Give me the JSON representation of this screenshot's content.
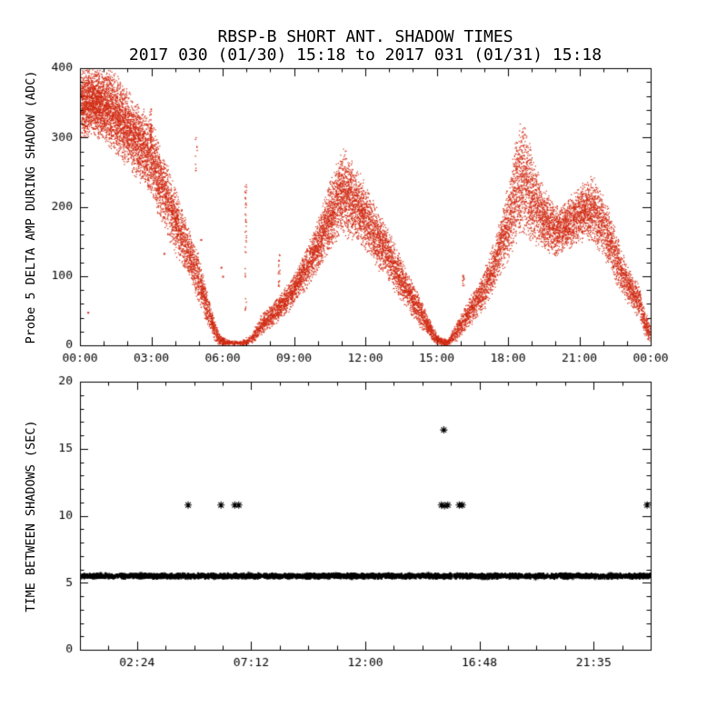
{
  "colors": {
    "background": "#ffffff",
    "axis": "#000000",
    "series_top": "#d12a12",
    "series_bottom": "#000000"
  },
  "chart_data": [
    {
      "type": "scatter",
      "title": "RBSP-B SHORT ANT. SHADOW TIMES",
      "subtitle": "2017 030 (01/30) 15:18 to 2017 031 (01/31) 15:18",
      "ylabel": "Probe 5 DELTA AMP DURING SHADOW (ADC)",
      "xlabel": "",
      "xlim": [
        0,
        24
      ],
      "ylim": [
        0,
        400
      ],
      "xticks": [
        0,
        3,
        6,
        9,
        12,
        15,
        18,
        21,
        24
      ],
      "xtick_labels": [
        "00:00",
        "03:00",
        "06:00",
        "09:00",
        "12:00",
        "15:00",
        "18:00",
        "21:00",
        "00:00"
      ],
      "xminor_step": 1,
      "yticks": [
        0,
        100,
        200,
        300,
        400
      ],
      "ytick_labels": [
        "0",
        "100",
        "200",
        "300",
        "400"
      ],
      "yminor_step": 20,
      "grid": false,
      "color": "#d12a12",
      "marker": "dot",
      "envelope": [
        [
          0.0,
          295,
          403,
          1100
        ],
        [
          0.7,
          300,
          403,
          1100
        ],
        [
          1.3,
          280,
          400,
          1000
        ],
        [
          2.0,
          255,
          375,
          900
        ],
        [
          2.6,
          230,
          345,
          850
        ],
        [
          3.0,
          210,
          330,
          800
        ],
        [
          3.5,
          170,
          280,
          700
        ],
        [
          4.0,
          130,
          230,
          650
        ],
        [
          4.5,
          98,
          180,
          600
        ],
        [
          5.0,
          60,
          130,
          550
        ],
        [
          5.35,
          28,
          78,
          500
        ],
        [
          5.65,
          5,
          38,
          420
        ],
        [
          5.9,
          0,
          14,
          300
        ],
        [
          6.3,
          0,
          8,
          160
        ],
        [
          6.8,
          0,
          8,
          140
        ],
        [
          7.2,
          2,
          18,
          220
        ],
        [
          7.6,
          14,
          45,
          350
        ],
        [
          8.0,
          24,
          60,
          400
        ],
        [
          8.5,
          38,
          80,
          450
        ],
        [
          9.0,
          58,
          105,
          500
        ],
        [
          9.5,
          80,
          145,
          550
        ],
        [
          10.0,
          105,
          185,
          620
        ],
        [
          10.4,
          128,
          230,
          700
        ],
        [
          10.8,
          148,
          272,
          780
        ],
        [
          11.1,
          155,
          292,
          800
        ],
        [
          11.4,
          148,
          270,
          760
        ],
        [
          11.8,
          138,
          248,
          700
        ],
        [
          12.2,
          122,
          222,
          650
        ],
        [
          12.6,
          104,
          192,
          600
        ],
        [
          13.0,
          88,
          168,
          560
        ],
        [
          13.5,
          62,
          128,
          520
        ],
        [
          14.0,
          38,
          92,
          480
        ],
        [
          14.4,
          20,
          62,
          440
        ],
        [
          14.8,
          5,
          32,
          380
        ],
        [
          15.1,
          0,
          14,
          280
        ],
        [
          15.45,
          0,
          9,
          220
        ],
        [
          15.75,
          4,
          30,
          330
        ],
        [
          16.1,
          16,
          52,
          380
        ],
        [
          16.5,
          32,
          78,
          420
        ],
        [
          17.0,
          52,
          112,
          470
        ],
        [
          17.4,
          78,
          155,
          520
        ],
        [
          17.8,
          108,
          205,
          580
        ],
        [
          18.1,
          128,
          255,
          650
        ],
        [
          18.4,
          148,
          318,
          720
        ],
        [
          18.65,
          152,
          330,
          720
        ],
        [
          18.9,
          148,
          295,
          680
        ],
        [
          19.2,
          140,
          262,
          640
        ],
        [
          19.6,
          132,
          225,
          600
        ],
        [
          20.0,
          128,
          202,
          580
        ],
        [
          20.4,
          133,
          210,
          580
        ],
        [
          20.8,
          142,
          228,
          600
        ],
        [
          21.2,
          150,
          243,
          620
        ],
        [
          21.6,
          142,
          248,
          600
        ],
        [
          22.0,
          125,
          222,
          560
        ],
        [
          22.4,
          98,
          182,
          520
        ],
        [
          22.8,
          70,
          138,
          480
        ],
        [
          23.2,
          52,
          105,
          460
        ],
        [
          23.5,
          38,
          88,
          440
        ],
        [
          23.75,
          12,
          55,
          400
        ],
        [
          24.0,
          0,
          28,
          340
        ]
      ],
      "streaks": [
        [
          2.95,
          295,
          342,
          30
        ],
        [
          6.95,
          48,
          238,
          40
        ],
        [
          8.35,
          86,
          134,
          18
        ],
        [
          4.87,
          250,
          310,
          10
        ],
        [
          16.1,
          86,
          102,
          12
        ]
      ],
      "points": [
        [
          0.35,
          47
        ],
        [
          3.55,
          132
        ],
        [
          5.1,
          152
        ],
        [
          5.95,
          112
        ],
        [
          6.02,
          99
        ],
        [
          23.9,
          9
        ],
        [
          23.95,
          16
        ]
      ]
    },
    {
      "type": "scatter",
      "title": "",
      "ylabel": "TIME BETWEEN SHADOWS (SEC)",
      "xlabel": "",
      "xlim": [
        0,
        24
      ],
      "ylim": [
        0,
        20
      ],
      "xticks": [
        2.4,
        7.2,
        12,
        16.8,
        21.6
      ],
      "xtick_labels": [
        "02:24",
        "07:12",
        "12:00",
        "16:48",
        "21:35"
      ],
      "xminor_step": 1.2,
      "yticks": [
        0,
        5,
        10,
        15,
        20
      ],
      "ytick_labels": [
        "0",
        "5",
        "10",
        "15",
        "20"
      ],
      "yminor_step": 1,
      "grid": false,
      "color": "#000000",
      "marker": "asterisk",
      "band": {
        "y": 5.5,
        "half_width": 0.22,
        "x_start": 0.05,
        "x_end": 23.97,
        "n": 4500,
        "gaps": [
          [
            15.63,
            15.73
          ]
        ]
      },
      "band_markers": [
        [
          6.22,
          5.55
        ],
        [
          15.58,
          5.5
        ],
        [
          15.78,
          5.5
        ]
      ],
      "outliers": [
        [
          4.55,
          10.8
        ],
        [
          5.93,
          10.8
        ],
        [
          6.51,
          10.8
        ],
        [
          6.68,
          10.8
        ],
        [
          15.2,
          10.8
        ],
        [
          15.33,
          10.75
        ],
        [
          15.47,
          10.8
        ],
        [
          15.95,
          10.8
        ],
        [
          16.08,
          10.8
        ],
        [
          23.85,
          10.8
        ],
        [
          15.3,
          16.4
        ]
      ]
    }
  ]
}
